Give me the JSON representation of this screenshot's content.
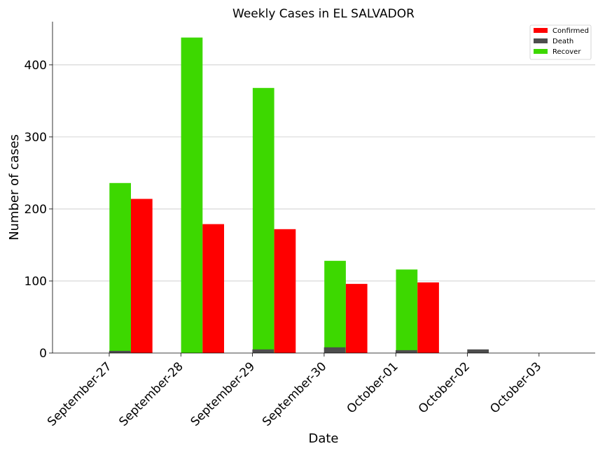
{
  "chart_data": {
    "type": "bar",
    "title": "Weekly Cases in EL SALVADOR",
    "xlabel": "Date",
    "ylabel": "Number of cases",
    "categories": [
      "September-27",
      "September-28",
      "September-29",
      "September-30",
      "October-01",
      "October-02",
      "October-03"
    ],
    "ylim": [
      0,
      460
    ],
    "yticks": [
      0,
      100,
      200,
      300,
      400
    ],
    "grid": "horizontal",
    "legend_position": "top-right",
    "series": [
      {
        "name": "Confirmed",
        "color": "#ff0000",
        "values": [
          0,
          214,
          179,
          172,
          96,
          98,
          0
        ]
      },
      {
        "name": "Death",
        "color": "#4d4d4d",
        "values": [
          3,
          0,
          5,
          8,
          4,
          5,
          0
        ]
      },
      {
        "name": "Recover",
        "color": "#3dd800",
        "values": [
          0,
          236,
          438,
          368,
          128,
          116,
          0
        ]
      }
    ]
  }
}
